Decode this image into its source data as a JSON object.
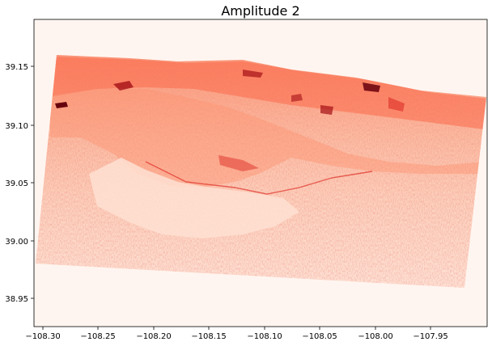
{
  "figure": {
    "title": "Amplitude 2",
    "x_ticks": [
      "−108.30",
      "−108.25",
      "−108.20",
      "−108.15",
      "−108.10",
      "−108.05",
      "−108.00",
      "−107.95"
    ],
    "y_ticks": [
      "39.15",
      "39.10",
      "39.05",
      "39.00",
      "38.95"
    ],
    "colormap": "Reds",
    "background_color": "#fff5f0",
    "accent_colors": [
      "#fee0d2",
      "#fcbba1",
      "#fc9272",
      "#fb6a4a",
      "#de2d26",
      "#a50f15",
      "#67000d"
    ]
  }
}
